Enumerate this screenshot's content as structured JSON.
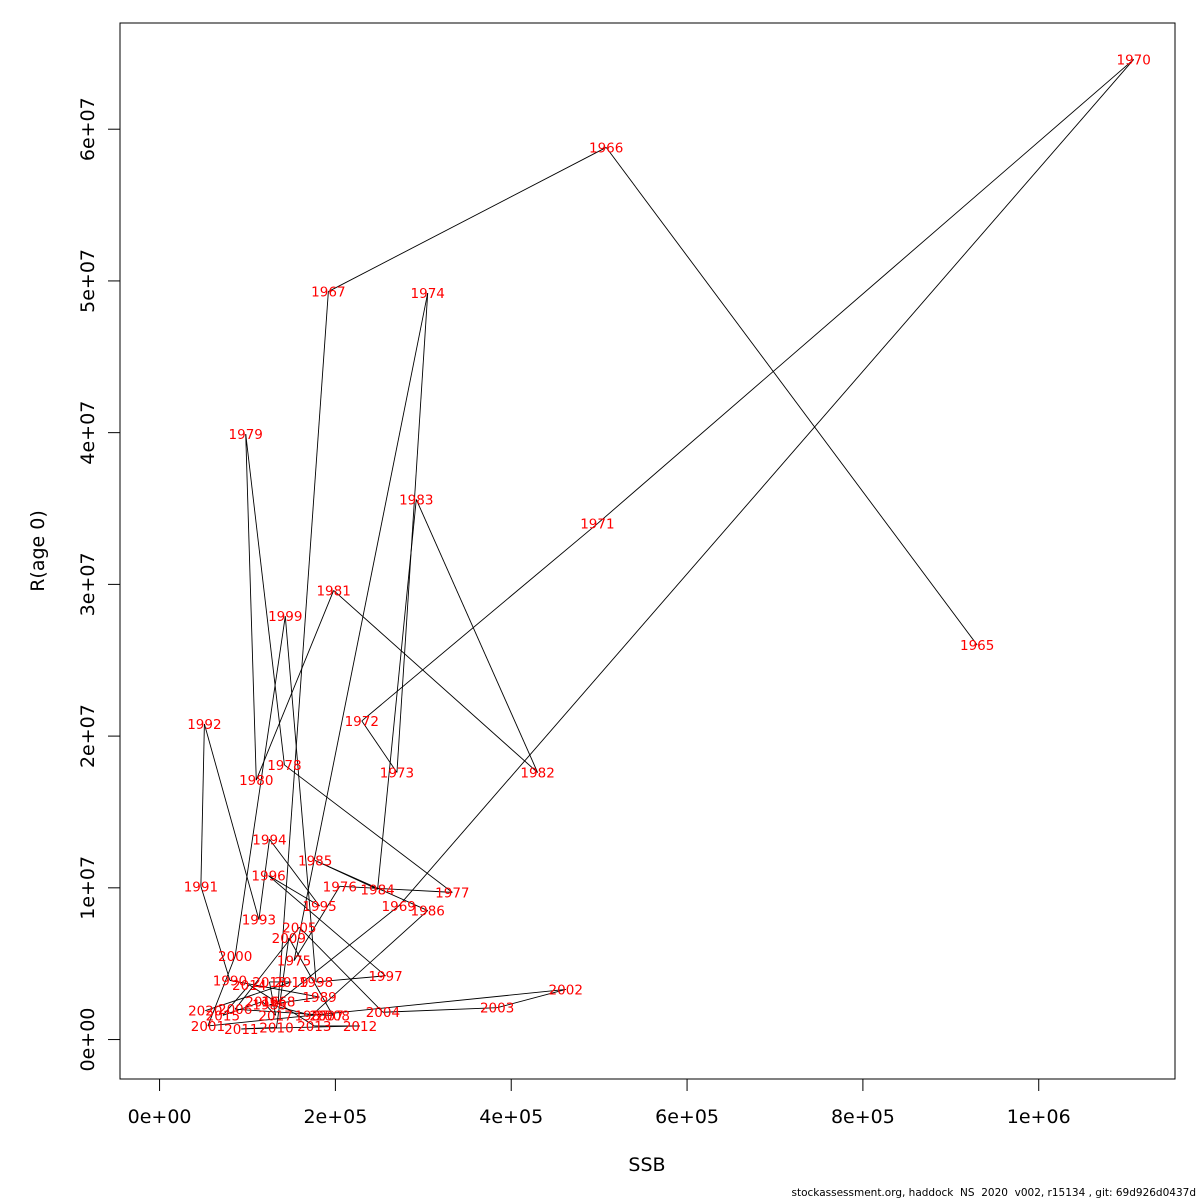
{
  "chart_data": {
    "type": "scatter",
    "style": "connected-path-with-year-labels",
    "title": "",
    "xlabel": "SSB",
    "ylabel": "R(age 0)",
    "xlim": [
      -45000,
      1155000
    ],
    "ylim": [
      -2600000,
      67000000
    ],
    "xticks": [
      0,
      200000,
      400000,
      600000,
      800000,
      1000000
    ],
    "xtick_labels": [
      "0e+00",
      "2e+05",
      "4e+05",
      "6e+05",
      "8e+05",
      "1e+06"
    ],
    "yticks": [
      0,
      10000000,
      20000000,
      30000000,
      40000000,
      50000000,
      60000000
    ],
    "ytick_labels": [
      "0e+00",
      "1e+07",
      "2e+07",
      "3e+07",
      "4e+07",
      "5e+07",
      "6e+07"
    ],
    "grid": false,
    "legend": "none",
    "line_color": "#000000",
    "label_color": "#ff0000",
    "points": [
      {
        "year": "1965",
        "ssb": 930000,
        "r": 26000000
      },
      {
        "year": "1966",
        "ssb": 508000,
        "r": 58800000
      },
      {
        "year": "1967",
        "ssb": 192000,
        "r": 49300000
      },
      {
        "year": "1968",
        "ssb": 135000,
        "r": 2500000
      },
      {
        "year": "1969",
        "ssb": 272000,
        "r": 8800000
      },
      {
        "year": "1970",
        "ssb": 1108000,
        "r": 64600000
      },
      {
        "year": "1971",
        "ssb": 498000,
        "r": 34000000
      },
      {
        "year": "1972",
        "ssb": 230000,
        "r": 21000000
      },
      {
        "year": "1973",
        "ssb": 270000,
        "r": 17600000
      },
      {
        "year": "1974",
        "ssb": 305000,
        "r": 49200000
      },
      {
        "year": "1975",
        "ssb": 153000,
        "r": 5200000
      },
      {
        "year": "1976",
        "ssb": 205000,
        "r": 10100000
      },
      {
        "year": "1977",
        "ssb": 333000,
        "r": 9700000
      },
      {
        "year": "1978",
        "ssb": 142000,
        "r": 18100000
      },
      {
        "year": "1979",
        "ssb": 98000,
        "r": 39900000
      },
      {
        "year": "1980",
        "ssb": 110000,
        "r": 17100000
      },
      {
        "year": "1981",
        "ssb": 198000,
        "r": 29600000
      },
      {
        "year": "1982",
        "ssb": 430000,
        "r": 17600000
      },
      {
        "year": "1983",
        "ssb": 292000,
        "r": 35600000
      },
      {
        "year": "1984",
        "ssb": 248000,
        "r": 9900000
      },
      {
        "year": "1985",
        "ssb": 177000,
        "r": 11800000
      },
      {
        "year": "1986",
        "ssb": 305000,
        "r": 8500000
      },
      {
        "year": "1987",
        "ssb": 173000,
        "r": 1600000
      },
      {
        "year": "1988",
        "ssb": 125000,
        "r": 2300000
      },
      {
        "year": "1989",
        "ssb": 182000,
        "r": 2800000
      },
      {
        "year": "1990",
        "ssb": 80000,
        "r": 3900000
      },
      {
        "year": "1991",
        "ssb": 47000,
        "r": 10100000
      },
      {
        "year": "1992",
        "ssb": 51000,
        "r": 20800000
      },
      {
        "year": "1993",
        "ssb": 113000,
        "r": 7900000
      },
      {
        "year": "1994",
        "ssb": 125000,
        "r": 13200000
      },
      {
        "year": "1995",
        "ssb": 182000,
        "r": 8800000
      },
      {
        "year": "1996",
        "ssb": 124000,
        "r": 10800000
      },
      {
        "year": "1997",
        "ssb": 257000,
        "r": 4200000
      },
      {
        "year": "1998",
        "ssb": 178000,
        "r": 3800000
      },
      {
        "year": "1999",
        "ssb": 143000,
        "r": 27900000
      },
      {
        "year": "2000",
        "ssb": 86000,
        "r": 5500000
      },
      {
        "year": "2001",
        "ssb": 55000,
        "r": 900000
      },
      {
        "year": "2002",
        "ssb": 462000,
        "r": 3300000
      },
      {
        "year": "2003",
        "ssb": 384000,
        "r": 2100000
      },
      {
        "year": "2004",
        "ssb": 254000,
        "r": 1800000
      },
      {
        "year": "2005",
        "ssb": 159000,
        "r": 7400000
      },
      {
        "year": "2006",
        "ssb": 86000,
        "r": 2000000
      },
      {
        "year": "2007",
        "ssb": 190000,
        "r": 1600000
      },
      {
        "year": "2008",
        "ssb": 197000,
        "r": 1600000
      },
      {
        "year": "2009",
        "ssb": 147000,
        "r": 6700000
      },
      {
        "year": "2010",
        "ssb": 133000,
        "r": 800000
      },
      {
        "year": "2011",
        "ssb": 93000,
        "r": 700000
      },
      {
        "year": "2012",
        "ssb": 228000,
        "r": 900000
      },
      {
        "year": "2013",
        "ssb": 176000,
        "r": 900000
      },
      {
        "year": "2014",
        "ssb": 102000,
        "r": 3600000
      },
      {
        "year": "2015",
        "ssb": 72000,
        "r": 1600000
      },
      {
        "year": "2016",
        "ssb": 117000,
        "r": 2500000
      },
      {
        "year": "2017",
        "ssb": 132000,
        "r": 1600000
      },
      {
        "year": "2018",
        "ssb": 125000,
        "r": 3800000
      },
      {
        "year": "2019",
        "ssb": 150000,
        "r": 3800000
      },
      {
        "year": "2020",
        "ssb": 52000,
        "r": 1900000
      }
    ]
  },
  "footer": "stockassessment.org, haddock  NS  2020  v002, r15134 , git: 69d926d0437d"
}
